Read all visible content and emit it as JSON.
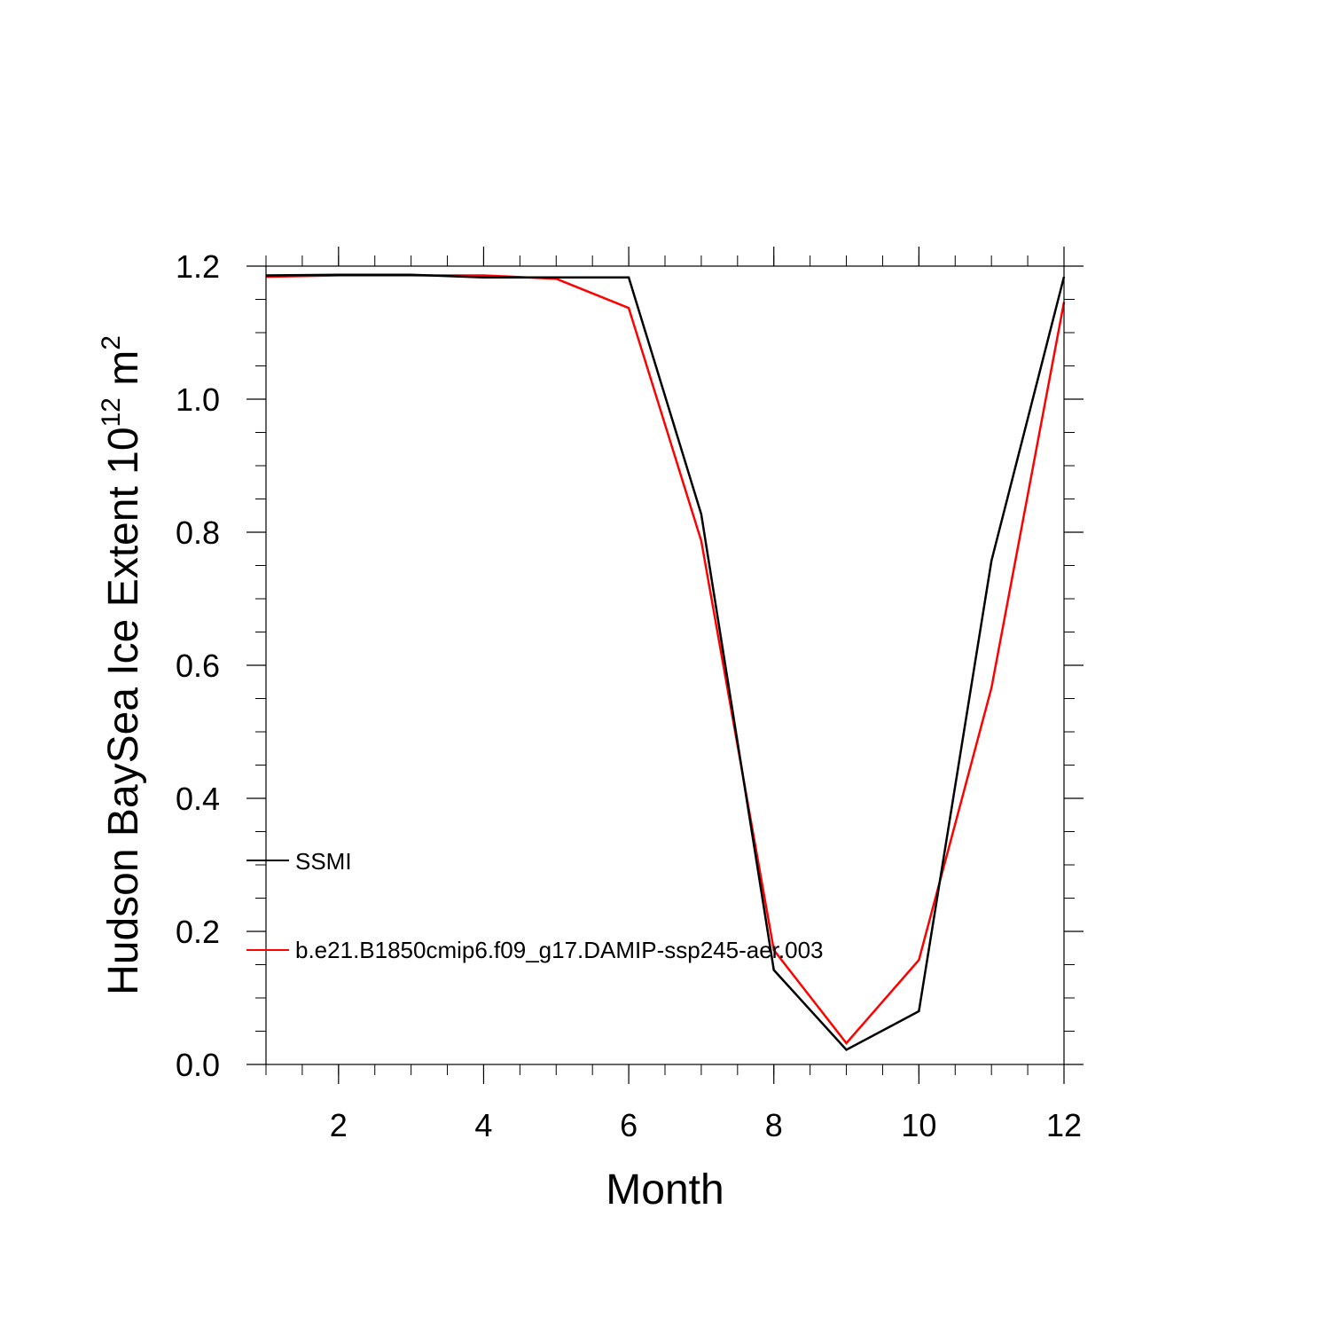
{
  "chart_data": {
    "type": "line",
    "xlabel": "Month",
    "ylabel": "Hudson BaySea Ice Extent 10",
    "ylabel_exponent": "12",
    "ylabel_unit": " m",
    "ylabel_unit_exponent": "2",
    "xlim": [
      1,
      12
    ],
    "ylim": [
      0.0,
      1.2
    ],
    "x_tick_labels": [
      "2",
      "4",
      "6",
      "8",
      "10",
      "12"
    ],
    "y_tick_labels": [
      "0.0",
      "0.2",
      "0.4",
      "0.6",
      "0.8",
      "1.0",
      "1.2"
    ],
    "x": [
      1,
      2,
      3,
      4,
      5,
      6,
      7,
      8,
      9,
      10,
      11,
      12
    ],
    "series": [
      {
        "name": "SSMI",
        "color": "#000000",
        "values": [
          1.186,
          1.187,
          1.187,
          1.183,
          1.183,
          1.183,
          0.827,
          0.142,
          0.022,
          0.08,
          0.757,
          1.184
        ]
      },
      {
        "name": "b.e21.B1850cmip6.f09_g17.DAMIP-ssp245-aer.003",
        "color": "#ff0000",
        "values": [
          1.184,
          1.186,
          1.186,
          1.186,
          1.181,
          1.137,
          0.787,
          0.172,
          0.032,
          0.157,
          0.566,
          1.146
        ]
      }
    ],
    "grid": false,
    "legend_position": "inside lower-left"
  }
}
